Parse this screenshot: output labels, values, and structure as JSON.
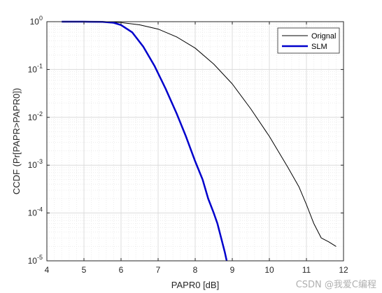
{
  "chart_data": {
    "type": "line",
    "xlabel": "PAPR0 [dB]",
    "ylabel": "CCDF (Pr[PAPR>PAPR0])",
    "xlim": [
      4,
      12
    ],
    "ylim": [
      1e-05,
      1
    ],
    "yscale": "log",
    "grid": "on (major and minor)",
    "legend_position": "top-right",
    "x_ticks": [
      "4",
      "5",
      "6",
      "7",
      "8",
      "9",
      "10",
      "11",
      "12"
    ],
    "y_ticks": [
      {
        "base": "10",
        "exp": "0"
      },
      {
        "base": "10",
        "exp": "-1"
      },
      {
        "base": "10",
        "exp": "-2"
      },
      {
        "base": "10",
        "exp": "-3"
      },
      {
        "base": "10",
        "exp": "-4"
      },
      {
        "base": "10",
        "exp": "-5"
      }
    ],
    "series": [
      {
        "name": "Orignal",
        "color": "#000000",
        "x": [
          4.4,
          5.0,
          5.5,
          6.0,
          6.5,
          7.0,
          7.5,
          8.0,
          8.5,
          9.0,
          9.5,
          10.0,
          10.5,
          10.8,
          11.0,
          11.2,
          11.4,
          11.6,
          11.8
        ],
        "y": [
          1.0,
          1.0,
          0.99,
          0.96,
          0.86,
          0.7,
          0.48,
          0.28,
          0.13,
          0.05,
          0.015,
          0.004,
          0.0009,
          0.00035,
          0.00015,
          6e-05,
          3e-05,
          2.5e-05,
          2e-05
        ]
      },
      {
        "name": "SLM",
        "color": "#0000cc",
        "x": [
          4.4,
          5.0,
          5.5,
          5.8,
          6.0,
          6.3,
          6.6,
          6.9,
          7.2,
          7.5,
          7.75,
          8.0,
          8.2,
          8.35,
          8.5,
          8.6,
          8.7,
          8.8,
          8.85
        ],
        "y": [
          1.0,
          1.0,
          0.99,
          0.95,
          0.85,
          0.6,
          0.3,
          0.12,
          0.04,
          0.012,
          0.004,
          0.0012,
          0.0005,
          0.0002,
          0.0001,
          6e-05,
          3e-05,
          1.5e-05,
          1e-05
        ]
      }
    ]
  },
  "watermark": "CSDN @我爱C编程"
}
